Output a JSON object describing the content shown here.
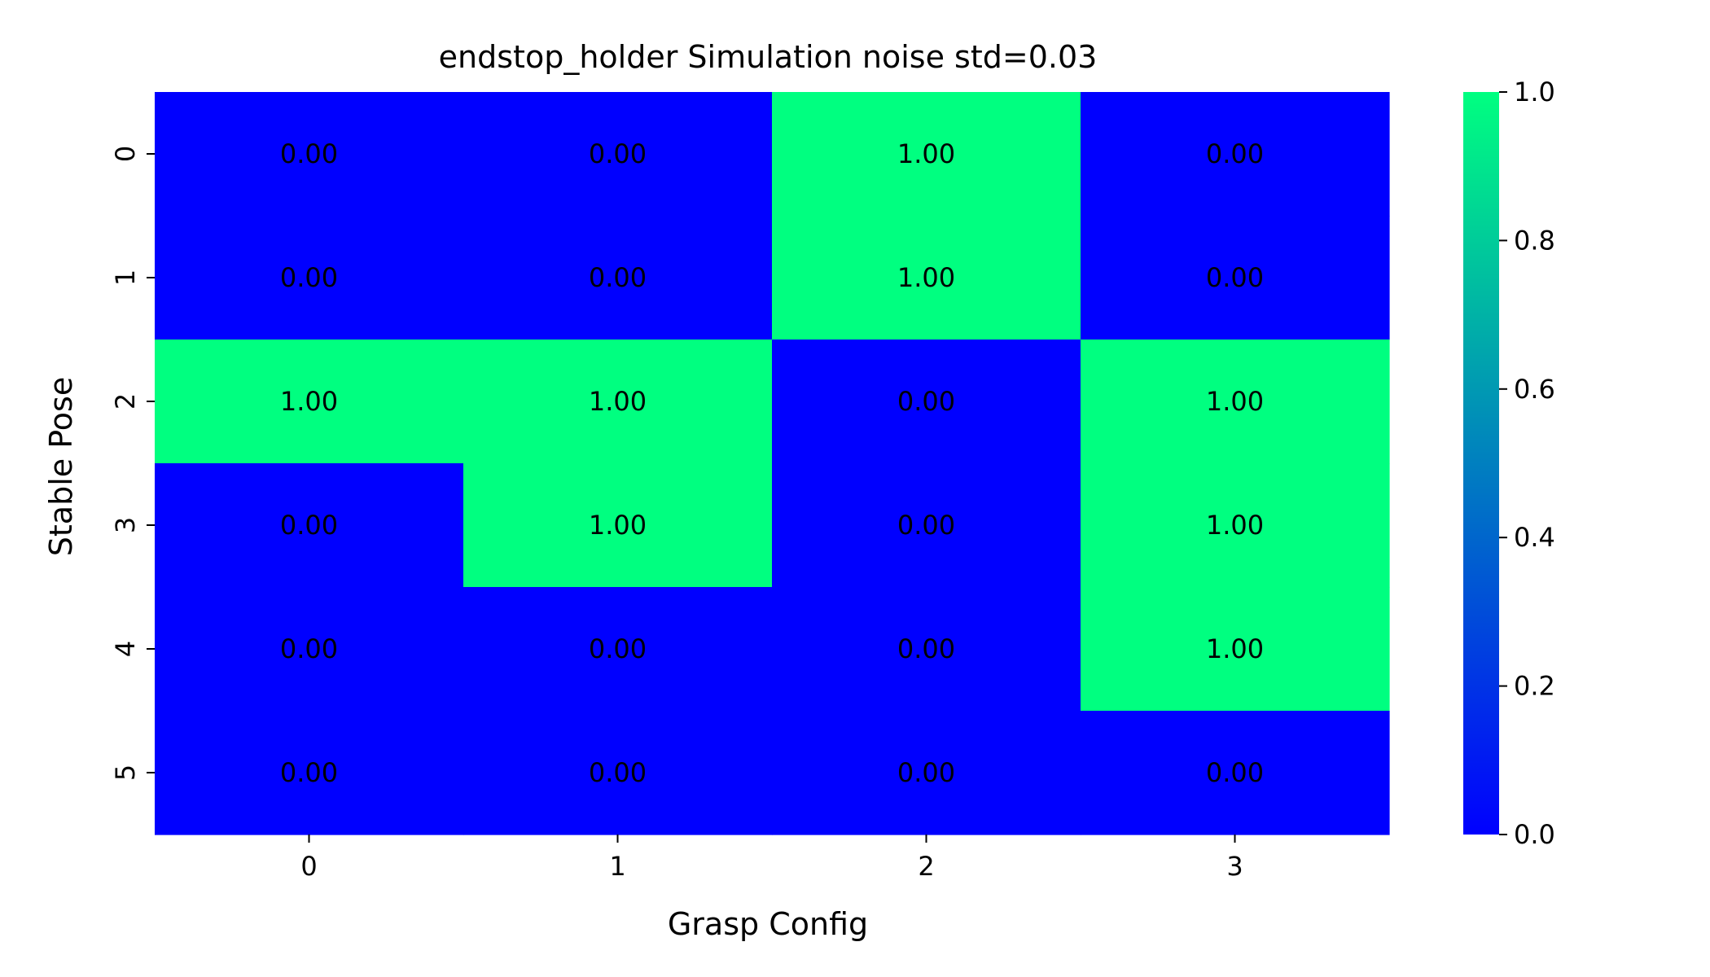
{
  "chart_data": {
    "type": "heatmap",
    "title": "endstop_holder Simulation noise std=0.03",
    "xlabel": "Grasp Config",
    "ylabel": "Stable Pose",
    "x_categories": [
      "0",
      "1",
      "2",
      "3"
    ],
    "y_categories": [
      "0",
      "1",
      "2",
      "3",
      "4",
      "5"
    ],
    "values": [
      [
        0.0,
        0.0,
        1.0,
        0.0
      ],
      [
        0.0,
        0.0,
        1.0,
        0.0
      ],
      [
        1.0,
        1.0,
        0.0,
        1.0
      ],
      [
        0.0,
        1.0,
        0.0,
        1.0
      ],
      [
        0.0,
        0.0,
        0.0,
        1.0
      ],
      [
        0.0,
        0.0,
        0.0,
        0.0
      ]
    ],
    "value_format": "0.00",
    "colorbar": {
      "range": [
        0.0,
        1.0
      ],
      "ticks": [
        0.0,
        0.2,
        0.4,
        0.6,
        0.8,
        1.0
      ],
      "tick_labels": [
        "0.0",
        "0.2",
        "0.4",
        "0.6",
        "0.8",
        "1.0"
      ],
      "placement": "right"
    },
    "colormap": {
      "name": "winter",
      "low_color": "#0000ff",
      "high_color": "#00ff80"
    },
    "grid": false
  }
}
